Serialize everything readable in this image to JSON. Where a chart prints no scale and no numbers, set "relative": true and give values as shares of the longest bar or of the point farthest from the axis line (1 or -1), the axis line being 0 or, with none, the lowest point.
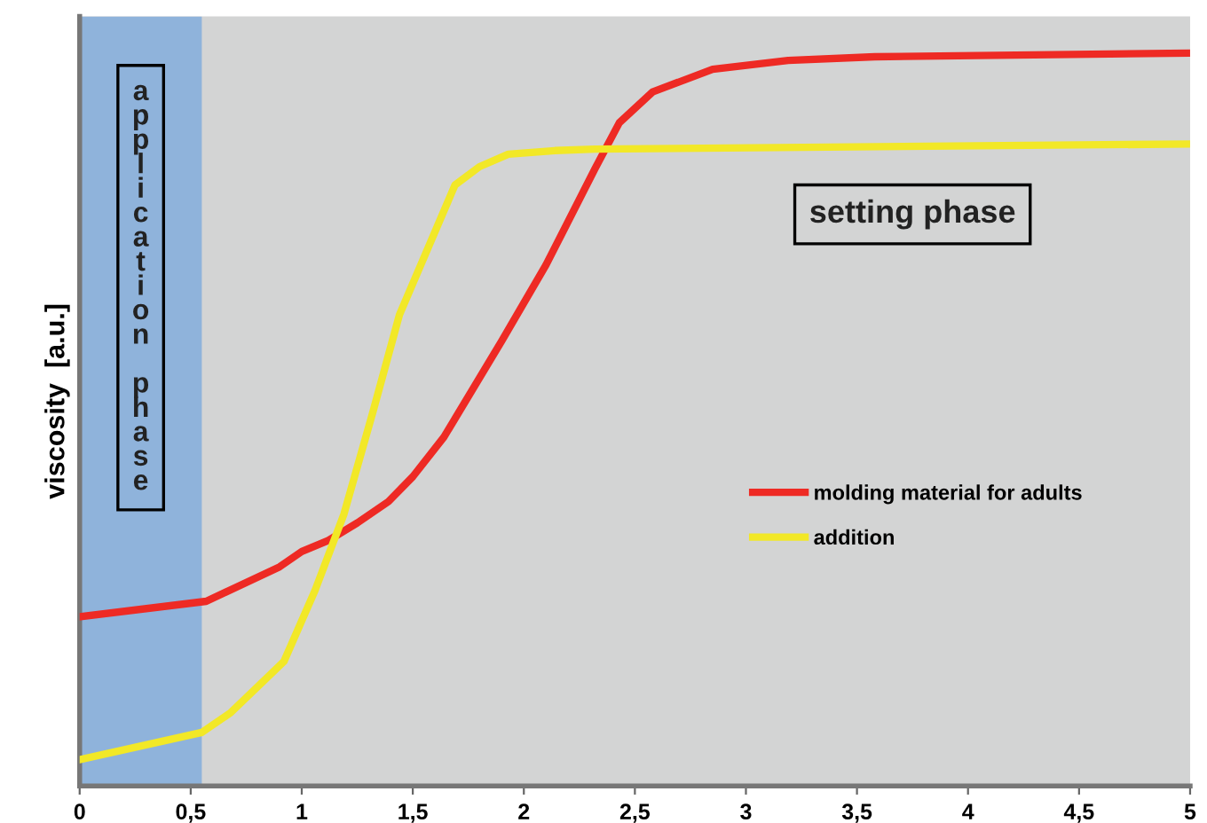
{
  "chart_data": {
    "type": "line",
    "relative": true,
    "ylabel": "viscosity  [a.u.]",
    "xlim": [
      0,
      5
    ],
    "xticks": [
      0,
      {
        "value": 0.5,
        "label": "0,5"
      },
      1,
      {
        "value": 1.5,
        "label": "1,5"
      },
      2,
      {
        "value": 2.5,
        "label": "2,5"
      },
      3,
      {
        "value": 3.5,
        "label": "3,5"
      },
      4,
      {
        "value": 4.5,
        "label": "4,5"
      },
      5
    ],
    "series": [
      {
        "name": "molding material for adults",
        "color": "#ee2a24",
        "x": [
          0,
          0.57,
          0.9,
          1.0,
          1.12,
          1.25,
          1.39,
          1.5,
          1.64,
          1.9,
          2.1,
          2.32,
          2.43,
          2.58,
          2.85,
          3.19,
          3.58,
          5
        ],
        "values": [
          0.231,
          0.252,
          0.299,
          0.32,
          0.335,
          0.359,
          0.388,
          0.422,
          0.476,
          0.607,
          0.711,
          0.842,
          0.905,
          0.947,
          0.978,
          0.99,
          0.995,
          1.0
        ]
      },
      {
        "name": "addition",
        "color": "#f2e827",
        "x": [
          0,
          0.55,
          0.68,
          0.92,
          1.06,
          1.19,
          1.32,
          1.44,
          1.56,
          1.69,
          1.8,
          1.93,
          2.14,
          2.32,
          5
        ],
        "values": [
          0.036,
          0.073,
          0.1,
          0.17,
          0.267,
          0.371,
          0.51,
          0.643,
          0.728,
          0.82,
          0.845,
          0.862,
          0.867,
          0.869,
          0.876
        ]
      }
    ],
    "bands": [
      {
        "axis": "x",
        "from": 0,
        "to": 0.55,
        "label": "application phase",
        "color": "#8fb3db"
      }
    ],
    "annotations": [
      "setting phase"
    ],
    "legend": "right",
    "grid": false,
    "line_style": "solid",
    "marker": "none"
  }
}
